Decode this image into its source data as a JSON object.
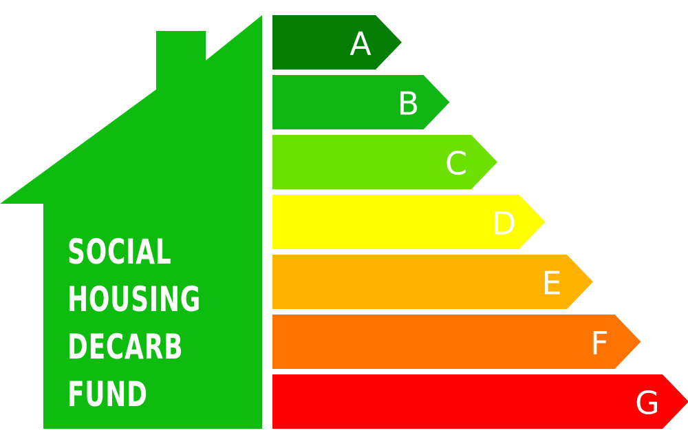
{
  "house": {
    "color": "#0ebc0f",
    "caption": [
      "SOCIAL",
      "HOUSING",
      "DECARB",
      "FUND"
    ]
  },
  "ratings": [
    {
      "letter": "A",
      "color": "#047d04"
    },
    {
      "letter": "B",
      "color": "#10b714"
    },
    {
      "letter": "C",
      "color": "#6ce000"
    },
    {
      "letter": "D",
      "color": "#ffff00"
    },
    {
      "letter": "E",
      "color": "#ffb200"
    },
    {
      "letter": "F",
      "color": "#ff7400"
    },
    {
      "letter": "G",
      "color": "#ff0000"
    }
  ]
}
